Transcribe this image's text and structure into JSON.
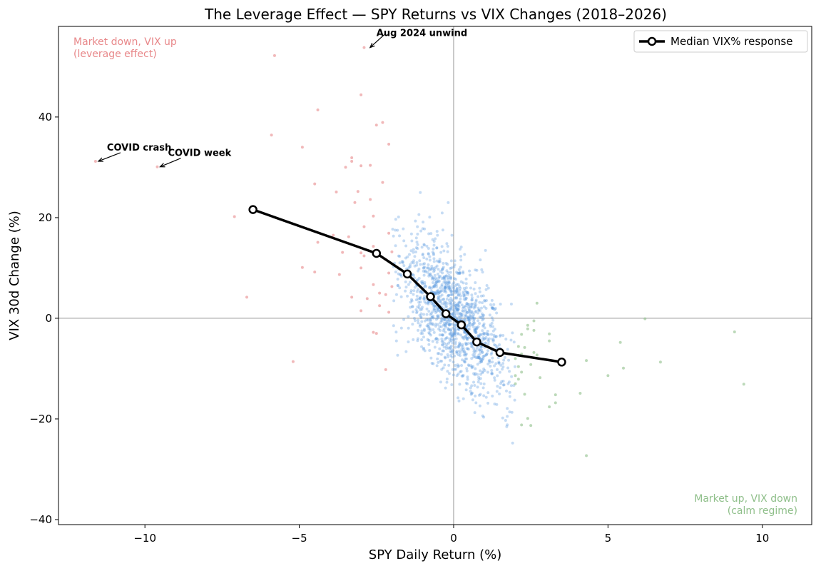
{
  "chart_data": {
    "type": "scatter",
    "title": "The Leverage Effect — SPY Returns vs VIX Changes (2018–2026)",
    "xlabel": "SPY Daily Return (%)",
    "ylabel": "VIX 30d Change (%)",
    "xlim": [
      -12.8,
      11.6
    ],
    "ylim": [
      -41,
      58
    ],
    "xticks": [
      -10,
      -5,
      0,
      5,
      10
    ],
    "xtick_labels": [
      "−10",
      "−5",
      "0",
      "5",
      "10"
    ],
    "yticks": [
      -40,
      -20,
      0,
      20,
      40
    ],
    "ytick_labels": [
      "−40",
      "−20",
      "0",
      "20",
      "40"
    ],
    "reference_lines": {
      "x": 0,
      "y": 0
    },
    "grid": false,
    "legend": {
      "placement": "top-right",
      "entries": [
        "Median VIX% response"
      ]
    },
    "colors": {
      "up_down": "#e8888a",
      "core": "#5b9be0",
      "calm": "#8fbf8a",
      "median_line": "#000000"
    },
    "median_series": {
      "name": "Median VIX% response",
      "points": [
        {
          "x": -6.5,
          "y": 21.6
        },
        {
          "x": -2.5,
          "y": 12.9
        },
        {
          "x": -1.5,
          "y": 8.8
        },
        {
          "x": -0.75,
          "y": 4.3
        },
        {
          "x": -0.25,
          "y": 0.9
        },
        {
          "x": 0.25,
          "y": -1.3
        },
        {
          "x": 0.75,
          "y": -4.7
        },
        {
          "x": 1.5,
          "y": -6.8
        },
        {
          "x": 3.5,
          "y": -8.7
        }
      ]
    },
    "scatter_series": [
      {
        "group": "market-down-vix-up",
        "color": "#e8888a",
        "points": [
          [
            -11.6,
            31.2
          ],
          [
            -9.6,
            30.1
          ],
          [
            -2.9,
            53.8
          ],
          [
            -5.8,
            52.2
          ],
          [
            -3.0,
            44.4
          ],
          [
            -4.4,
            41.4
          ],
          [
            -5.9,
            36.4
          ],
          [
            -2.5,
            38.4
          ],
          [
            -2.3,
            38.9
          ],
          [
            -4.9,
            34.0
          ],
          [
            -2.1,
            34.6
          ],
          [
            -3.3,
            31.9
          ],
          [
            -3.3,
            31.2
          ],
          [
            -3.0,
            30.3
          ],
          [
            -2.7,
            30.4
          ],
          [
            -3.5,
            30.0
          ],
          [
            -2.3,
            27.0
          ],
          [
            -4.5,
            26.7
          ],
          [
            -3.8,
            25.1
          ],
          [
            -3.1,
            25.2
          ],
          [
            -2.7,
            23.6
          ],
          [
            -3.2,
            23.0
          ],
          [
            -7.1,
            20.2
          ],
          [
            -3.9,
            16.5
          ],
          [
            -2.1,
            16.9
          ],
          [
            -4.4,
            15.1
          ],
          [
            -2.6,
            14.3
          ],
          [
            -3.0,
            13.0
          ],
          [
            -2.9,
            12.4
          ],
          [
            -4.9,
            10.1
          ],
          [
            -3.0,
            10.0
          ],
          [
            -4.5,
            9.2
          ],
          [
            -2.1,
            9.0
          ],
          [
            -3.7,
            8.7
          ],
          [
            -2.6,
            6.7
          ],
          [
            -2.0,
            6.3
          ],
          [
            -2.4,
            5.0
          ],
          [
            -2.8,
            3.9
          ],
          [
            -3.3,
            4.2
          ],
          [
            -2.2,
            4.7
          ],
          [
            -6.7,
            4.2
          ],
          [
            -2.4,
            2.5
          ],
          [
            -3.0,
            1.5
          ],
          [
            -2.1,
            1.2
          ],
          [
            -2.6,
            -2.8
          ],
          [
            -2.5,
            -3.0
          ],
          [
            -5.2,
            -8.6
          ],
          [
            -2.2,
            -10.2
          ],
          [
            -3.4,
            16.2
          ],
          [
            -2.0,
            13.2
          ],
          [
            -2.2,
            11.7
          ],
          [
            -3.6,
            13.1
          ],
          [
            -2.9,
            18.2
          ],
          [
            -2.6,
            20.3
          ]
        ]
      },
      {
        "group": "core",
        "color": "#5b9be0",
        "generated": true,
        "count": 1300
      },
      {
        "group": "market-up-vix-down",
        "color": "#8fbf8a",
        "points": [
          [
            9.4,
            -13.1
          ],
          [
            9.1,
            -2.7
          ],
          [
            6.7,
            -8.7
          ],
          [
            6.2,
            -0.1
          ],
          [
            5.5,
            -9.9
          ],
          [
            5.4,
            -4.8
          ],
          [
            5.0,
            -11.4
          ],
          [
            4.3,
            -27.3
          ],
          [
            4.3,
            -8.4
          ],
          [
            4.1,
            -14.9
          ],
          [
            3.3,
            -15.2
          ],
          [
            3.3,
            -16.8
          ],
          [
            3.1,
            -17.6
          ],
          [
            3.1,
            -3.1
          ],
          [
            3.1,
            -4.5
          ],
          [
            2.7,
            3.0
          ],
          [
            2.6,
            -0.5
          ],
          [
            2.5,
            -21.3
          ],
          [
            2.4,
            -19.9
          ],
          [
            2.2,
            -21.2
          ],
          [
            2.0,
            -13.0
          ],
          [
            2.1,
            -12.1
          ],
          [
            2.2,
            -10.7
          ],
          [
            2.5,
            -9.2
          ],
          [
            2.7,
            -7.3
          ],
          [
            2.9,
            -8.1
          ],
          [
            2.3,
            -5.8
          ],
          [
            2.1,
            -5.6
          ],
          [
            2.6,
            -2.4
          ],
          [
            2.4,
            -1.4
          ],
          [
            2.2,
            -3.2
          ],
          [
            2.0,
            -8.0
          ],
          [
            2.3,
            -15.1
          ],
          [
            2.6,
            -6.8
          ],
          [
            2.1,
            -9.6
          ],
          [
            2.8,
            -11.8
          ],
          [
            2.0,
            -11.4
          ],
          [
            2.4,
            -2.1
          ],
          [
            2.2,
            -7.1
          ]
        ]
      }
    ],
    "annotations": [
      {
        "text": "Aug 2024 unwind",
        "x": -2.8,
        "y": 53.8
      },
      {
        "text": "COVID crash",
        "x": -11.6,
        "y": 31.2
      },
      {
        "text": "COVID week",
        "x": -9.6,
        "y": 30.1
      }
    ],
    "corner_labels": {
      "top_left": [
        "Market down, VIX up",
        "(leverage effect)"
      ],
      "bottom_right": [
        "Market up, VIX down",
        "(calm regime)"
      ]
    }
  }
}
